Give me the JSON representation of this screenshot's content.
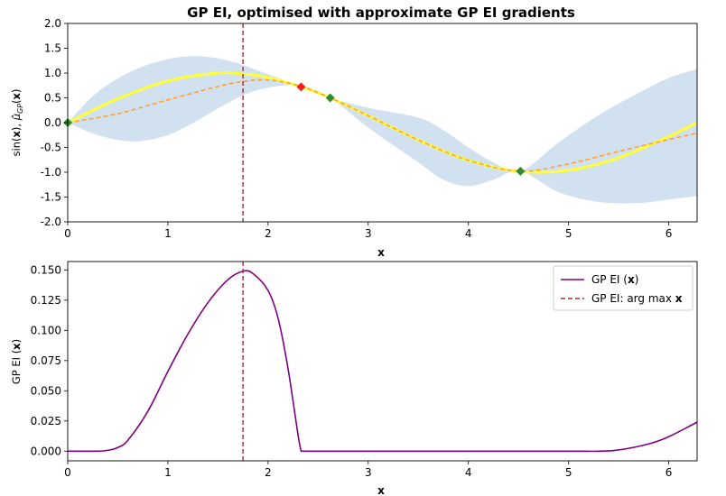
{
  "chart_data": [
    {
      "type": "line",
      "title": "GP EI, optimised with approximate GP EI gradients",
      "xlabel": "x",
      "ylabel": "sin(x), μ̂_GP(x)",
      "xlim": [
        0,
        6.283
      ],
      "ylim": [
        -2.0,
        2.0
      ],
      "x_ticks": [
        "0",
        "1",
        "2",
        "3",
        "4",
        "5",
        "6"
      ],
      "y_ticks": [
        "2.0",
        "1.5",
        "1.0",
        "0.5",
        "0.0",
        "-0.5",
        "-1.0",
        "-1.5",
        "-2.0"
      ],
      "grid": false,
      "colors": {
        "true_function": "#ffff33",
        "gp_mean": "#ffa033",
        "band": "#c9dcec",
        "argmax_line": "#a52a2a",
        "observed_points": "#2e8b2e",
        "proposed_point": "#ff1a1a"
      },
      "series": [
        {
          "style": "solid",
          "x": [
            0,
            0.5,
            1.0,
            1.5,
            1.75,
            2.0,
            2.5,
            3.0,
            3.5,
            4.0,
            4.5,
            5.0,
            5.5,
            6.0,
            6.283
          ],
          "y": [
            0,
            0.48,
            0.84,
            1.0,
            0.98,
            0.91,
            0.6,
            0.14,
            -0.35,
            -0.76,
            -0.98,
            -0.96,
            -0.71,
            -0.28,
            0.0
          ]
        },
        {
          "style": "dashed",
          "x": [
            0,
            0.5,
            1.0,
            1.5,
            1.75,
            2.0,
            2.3,
            2.62,
            3.0,
            3.5,
            4.0,
            4.52,
            5.0,
            5.5,
            6.0,
            6.283
          ],
          "y": [
            0.0,
            0.18,
            0.46,
            0.73,
            0.83,
            0.86,
            0.75,
            0.5,
            0.14,
            -0.35,
            -0.76,
            -0.98,
            -0.83,
            -0.58,
            -0.34,
            -0.21
          ]
        },
        {
          "style": "band",
          "x": [
            0,
            0.3,
            0.65,
            1.0,
            1.3,
            1.6,
            1.9,
            2.3,
            2.62,
            3.0,
            3.5,
            3.75,
            4.0,
            4.25,
            4.52,
            4.9,
            5.3,
            5.7,
            6.0,
            6.283
          ],
          "upper": [
            0.0,
            0.62,
            1.05,
            1.28,
            1.34,
            1.25,
            1.05,
            0.75,
            0.5,
            0.3,
            0.1,
            -0.15,
            -0.5,
            -0.8,
            -0.98,
            -0.4,
            0.15,
            0.6,
            0.9,
            1.08
          ],
          "lower": [
            0.0,
            -0.25,
            -0.38,
            -0.25,
            0.05,
            0.4,
            0.66,
            0.75,
            0.5,
            -0.1,
            -0.8,
            -1.15,
            -1.28,
            -1.15,
            -0.98,
            -1.4,
            -1.6,
            -1.62,
            -1.55,
            -1.48
          ]
        }
      ],
      "markers": [
        {
          "kind": "observed",
          "shape": "diamond",
          "x": 0.0,
          "y": 0.0
        },
        {
          "kind": "observed",
          "shape": "diamond",
          "x": 2.62,
          "y": 0.5
        },
        {
          "kind": "observed",
          "shape": "diamond",
          "x": 4.52,
          "y": -0.98
        },
        {
          "kind": "proposed",
          "shape": "diamond",
          "x": 2.33,
          "y": 0.72
        }
      ],
      "vline": {
        "x": 1.75,
        "style": "dashed"
      }
    },
    {
      "type": "line",
      "title": "",
      "xlabel": "x",
      "ylabel": "GP EI (x)",
      "xlim": [
        0,
        6.283
      ],
      "ylim": [
        -0.008,
        0.157
      ],
      "x_ticks": [
        "0",
        "1",
        "2",
        "3",
        "4",
        "5",
        "6"
      ],
      "y_ticks": [
        "0.150",
        "0.125",
        "0.100",
        "0.075",
        "0.050",
        "0.025",
        "0.000"
      ],
      "grid": false,
      "legend_position": "top-right",
      "colors": {
        "ei_curve": "#800080",
        "argmax_line": "#a52a2a"
      },
      "series": [
        {
          "name": "GP EI (x)",
          "style": "solid",
          "x": [
            0,
            0.3,
            0.4,
            0.5,
            0.6,
            0.8,
            1.0,
            1.2,
            1.4,
            1.6,
            1.75,
            1.85,
            2.0,
            2.1,
            2.2,
            2.3,
            2.33,
            2.5,
            3.0,
            4.0,
            5.0,
            5.3,
            5.5,
            5.8,
            6.0,
            6.283
          ],
          "y": [
            0.0,
            0.0,
            0.0007,
            0.003,
            0.009,
            0.033,
            0.066,
            0.097,
            0.123,
            0.142,
            0.149,
            0.147,
            0.133,
            0.11,
            0.068,
            0.013,
            0.0,
            0.0,
            0.0,
            0.0,
            0.0,
            0.0,
            0.001,
            0.006,
            0.012,
            0.024
          ]
        }
      ],
      "vline": {
        "x": 1.75,
        "style": "dashed"
      },
      "legend": [
        {
          "label": "GP EI (x)",
          "style": "solid"
        },
        {
          "label": "GP EI: arg max x",
          "style": "dashed"
        }
      ]
    }
  ]
}
